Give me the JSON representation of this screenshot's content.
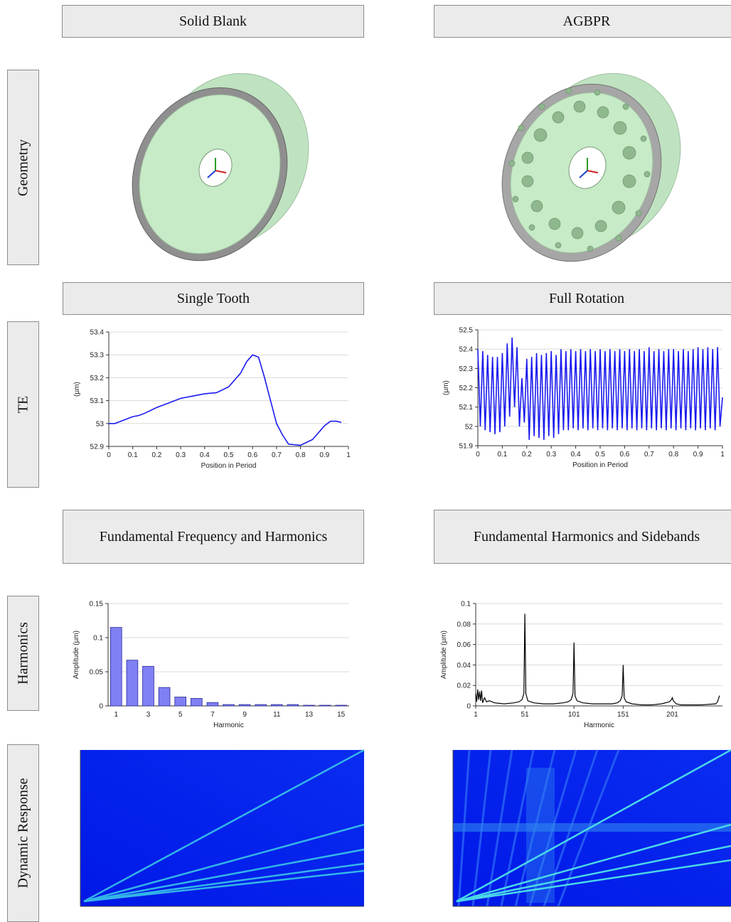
{
  "columns": [
    "Solid Blank",
    "AGBPR"
  ],
  "row_labels": [
    "Geometry",
    "TE",
    "Harmonics",
    "Dynamic Response"
  ],
  "chart_data": [
    {
      "type": "line",
      "title": "Single Tooth",
      "x_label": "Position in Period",
      "y_label": "(µm)",
      "color": "#1a1aee",
      "grid": true,
      "x": [
        0,
        0.025,
        0.05,
        0.075,
        0.1,
        0.125,
        0.15,
        0.2,
        0.25,
        0.3,
        0.35,
        0.4,
        0.45,
        0.5,
        0.55,
        0.575,
        0.6,
        0.625,
        0.65,
        0.7,
        0.725,
        0.75,
        0.8,
        0.85,
        0.9,
        0.925,
        0.95,
        0.97
      ],
      "values": [
        53.0,
        53.0,
        53.01,
        53.02,
        53.03,
        53.035,
        53.045,
        53.07,
        53.09,
        53.11,
        53.12,
        53.13,
        53.135,
        53.16,
        53.22,
        53.27,
        53.3,
        53.29,
        53.2,
        53.0,
        52.95,
        52.91,
        52.905,
        52.93,
        52.99,
        53.01,
        53.01,
        53.005
      ],
      "xlim": [
        0,
        1
      ],
      "xticks": [
        0,
        0.1,
        0.2,
        0.3,
        0.4,
        0.5,
        0.6,
        0.7,
        0.8,
        0.9,
        1
      ],
      "ylim": [
        52.9,
        53.4
      ],
      "yticks": [
        52.9,
        53,
        53.1,
        53.2,
        53.3,
        53.4
      ]
    },
    {
      "type": "line",
      "title": "Full Rotation",
      "x_label": "Position in Period",
      "y_label": "(µm)",
      "color": "#1a1aee",
      "grid": true,
      "x": [
        0,
        0.01,
        0.02,
        0.03,
        0.04,
        0.05,
        0.06,
        0.07,
        0.08,
        0.09,
        0.1,
        0.11,
        0.12,
        0.13,
        0.14,
        0.15,
        0.16,
        0.17,
        0.18,
        0.19,
        0.2,
        0.21,
        0.22,
        0.23,
        0.24,
        0.25,
        0.26,
        0.27,
        0.28,
        0.29,
        0.3,
        0.31,
        0.32,
        0.33,
        0.34,
        0.35,
        0.36,
        0.37,
        0.38,
        0.39,
        0.4,
        0.41,
        0.42,
        0.43,
        0.44,
        0.45,
        0.46,
        0.47,
        0.48,
        0.49,
        0.5,
        0.51,
        0.52,
        0.53,
        0.54,
        0.55,
        0.56,
        0.57,
        0.58,
        0.59,
        0.6,
        0.61,
        0.62,
        0.63,
        0.64,
        0.65,
        0.66,
        0.67,
        0.68,
        0.69,
        0.7,
        0.71,
        0.72,
        0.73,
        0.74,
        0.75,
        0.76,
        0.77,
        0.78,
        0.79,
        0.8,
        0.81,
        0.82,
        0.83,
        0.84,
        0.85,
        0.86,
        0.87,
        0.88,
        0.89,
        0.9,
        0.91,
        0.92,
        0.93,
        0.94,
        0.95,
        0.96,
        0.97,
        0.98,
        0.99,
        1
      ],
      "values": [
        52.4,
        52.0,
        52.39,
        51.98,
        52.37,
        51.97,
        52.36,
        51.96,
        52.36,
        51.97,
        52.38,
        52.0,
        52.43,
        52.05,
        52.46,
        52.1,
        52.41,
        52.0,
        52.25,
        52.02,
        52.35,
        51.93,
        52.36,
        51.95,
        52.38,
        51.94,
        52.37,
        51.93,
        52.38,
        51.95,
        52.39,
        51.94,
        52.37,
        51.96,
        52.4,
        51.98,
        52.39,
        51.98,
        52.4,
        51.99,
        52.39,
        51.98,
        52.4,
        51.99,
        52.39,
        51.98,
        52.4,
        51.99,
        52.39,
        51.98,
        52.4,
        51.99,
        52.39,
        51.98,
        52.4,
        51.99,
        52.39,
        51.98,
        52.4,
        51.99,
        52.39,
        51.98,
        52.4,
        51.99,
        52.39,
        51.98,
        52.4,
        51.99,
        52.39,
        51.98,
        52.41,
        51.99,
        52.39,
        51.98,
        52.4,
        51.99,
        52.39,
        51.98,
        52.4,
        51.99,
        52.4,
        51.98,
        52.39,
        51.99,
        52.4,
        51.98,
        52.39,
        51.99,
        52.4,
        51.98,
        52.41,
        51.99,
        52.4,
        51.98,
        52.41,
        51.99,
        52.4,
        51.98,
        52.41,
        52.0,
        52.15
      ],
      "xlim": [
        0,
        1
      ],
      "xticks": [
        0,
        0.1,
        0.2,
        0.3,
        0.4,
        0.5,
        0.6,
        0.7,
        0.8,
        0.9,
        1
      ],
      "ylim": [
        51.9,
        52.5
      ],
      "yticks": [
        51.9,
        52,
        52.1,
        52.2,
        52.3,
        52.4,
        52.5
      ]
    },
    {
      "type": "bar",
      "title": "Fundamental Frequency and Harmonics",
      "x_label": "Harmonic",
      "y_label": "Amplitude (µm)",
      "color": "#8080f4",
      "grid": true,
      "categories": [
        "1",
        null,
        "3",
        null,
        "5",
        null,
        "7",
        null,
        "9",
        null,
        "11",
        null,
        "13",
        null,
        "15"
      ],
      "values": [
        0.115,
        0.067,
        0.058,
        0.027,
        0.013,
        0.011,
        0.005,
        0.002,
        0.002,
        0.002,
        0.002,
        0.002,
        0.001,
        0.001,
        0.001
      ],
      "ylim": [
        0,
        0.15
      ],
      "yticks": [
        0,
        0.05,
        0.1,
        0.15
      ]
    },
    {
      "type": "line",
      "title": "Fundamental Harmonics and Sidebands",
      "x_label": "Harmonic",
      "y_label": "Amplitude (µm)",
      "color": "#000000",
      "grid": true,
      "x": [
        1,
        2,
        3,
        4,
        5,
        6,
        7,
        8,
        10,
        12,
        15,
        20,
        30,
        40,
        45,
        48,
        50,
        51,
        52,
        54,
        60,
        70,
        80,
        90,
        95,
        98,
        100,
        101,
        102,
        104,
        110,
        120,
        130,
        140,
        145,
        148,
        150,
        151,
        152,
        154,
        160,
        170,
        180,
        190,
        198,
        200,
        201,
        202,
        205,
        210,
        220,
        230,
        245,
        247,
        249
      ],
      "values": [
        0.012,
        0.004,
        0.016,
        0.006,
        0.014,
        0.005,
        0.015,
        0.003,
        0.008,
        0.004,
        0.005,
        0.003,
        0.002,
        0.003,
        0.004,
        0.006,
        0.012,
        0.09,
        0.012,
        0.005,
        0.003,
        0.002,
        0.002,
        0.003,
        0.004,
        0.006,
        0.012,
        0.062,
        0.01,
        0.005,
        0.003,
        0.002,
        0.002,
        0.002,
        0.003,
        0.005,
        0.01,
        0.04,
        0.008,
        0.004,
        0.002,
        0.001,
        0.001,
        0.002,
        0.004,
        0.006,
        0.008,
        0.005,
        0.002,
        0.001,
        0.001,
        0.001,
        0.002,
        0.004,
        0.01
      ],
      "xlim": [
        1,
        252
      ],
      "xticks": [
        1,
        51,
        101,
        151,
        201
      ],
      "ylim": [
        0,
        0.1
      ],
      "yticks": [
        0,
        0.02,
        0.04,
        0.06,
        0.08,
        0.1
      ]
    }
  ]
}
